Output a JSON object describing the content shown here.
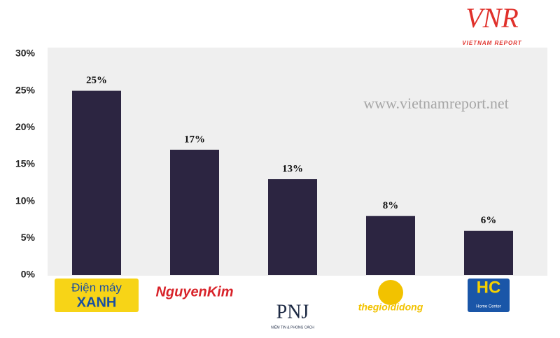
{
  "chart_data": {
    "type": "bar",
    "categories": [
      "Điện máy",
      "NguyenKim",
      "PNJ",
      "thegioididong",
      "HC"
    ],
    "category_sublabels": [
      "XANH",
      null,
      "NIỀM TIN & PHONG CÁCH",
      null,
      "Home Center"
    ],
    "values": [
      25,
      17,
      13,
      8,
      6
    ],
    "value_labels": [
      "25%",
      "17%",
      "13%",
      "8%",
      "6%"
    ],
    "color": "#2c2541",
    "ylim": [
      0,
      30
    ],
    "yticks": [
      {
        "value": 0,
        "label": "0%"
      },
      {
        "value": 5,
        "label": "5%"
      },
      {
        "value": 10,
        "label": "10%"
      },
      {
        "value": 15,
        "label": "15%"
      },
      {
        "value": 20,
        "label": "20%"
      },
      {
        "value": 25,
        "label": "25%"
      },
      {
        "value": 30,
        "label": "30%"
      }
    ],
    "watermark": "www.vietnamreport.net",
    "brand_logo": "VNR",
    "brand_name": "VIETNAM REPORT"
  }
}
